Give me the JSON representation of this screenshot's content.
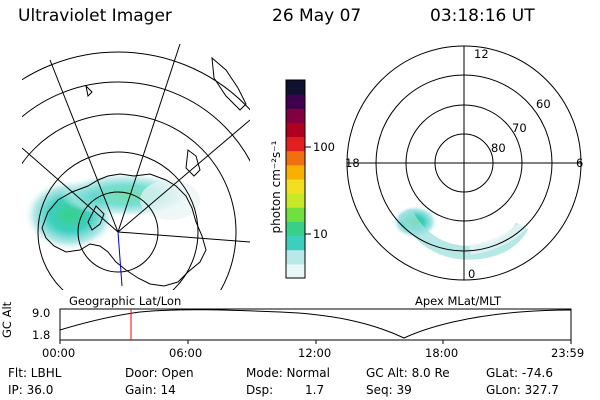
{
  "header": {
    "instrument": "Ultraviolet Imager",
    "date": "26 May 07",
    "time": "03:18:16 UT"
  },
  "left_panel": {
    "caption": "Geographic Lat/Lon"
  },
  "right_panel": {
    "caption": "Apex MLat/MLT",
    "mlt_labels": [
      "12",
      "18",
      "6",
      "0"
    ],
    "mlat_labels": [
      "80",
      "70",
      "60"
    ]
  },
  "colorbar": {
    "unit_label": "photon cm⁻²s⁻¹",
    "ticks": [
      "100",
      "10"
    ],
    "scale": "log",
    "colors": [
      "#e8f8f8",
      "#b8e8e8",
      "#3ccfc0",
      "#38d088",
      "#70e040",
      "#c8e828",
      "#f0e020",
      "#f8b000",
      "#f07010",
      "#e02020",
      "#b00020",
      "#800040",
      "#400050",
      "#101030"
    ]
  },
  "altitude_plot": {
    "ylabel": "GC Alt",
    "y_ticks": [
      "9.0",
      "1.8"
    ],
    "x_ticks": [
      "00:00",
      "06:00",
      "12:00",
      "18:00",
      "23:59"
    ],
    "current_time_color": "#ff0000"
  },
  "info": {
    "filter": "Flt: LBHL",
    "ip": "IP: 36.0",
    "door": "Door: Open",
    "gain": "Gain: 14",
    "mode": "Mode: Normal",
    "dsp_label": "Dsp:",
    "dsp_value": "1.7",
    "gc_alt": "GC Alt: 8.0 Re",
    "seq": "Seq: 39",
    "glat": "GLat: -74.6",
    "glon": "GLon: 327.7"
  }
}
